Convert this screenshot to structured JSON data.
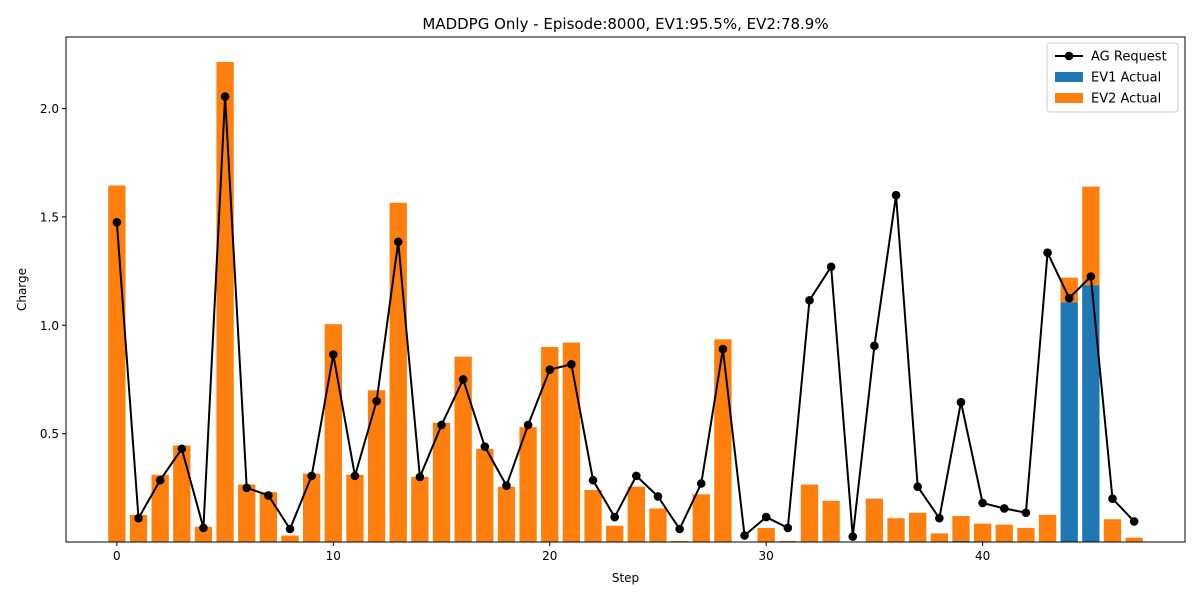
{
  "chart_data": {
    "type": "bar",
    "title": "MADDPG Only - Episode:8000, EV1:95.5%, EV2:78.9%",
    "xlabel": "Step",
    "ylabel": "Charge",
    "xlim": [
      -2.35,
      49.35
    ],
    "ylim": [
      0,
      2.33
    ],
    "x_ticks": [
      0,
      10,
      20,
      30,
      40
    ],
    "y_ticks": [
      0.5,
      1.0,
      1.5,
      2.0
    ],
    "y_tick_labels": [
      "0.5",
      "1.0",
      "1.5",
      "2.0"
    ],
    "grid": false,
    "legend_position": "top-right",
    "x": [
      0,
      1,
      2,
      3,
      4,
      5,
      6,
      7,
      8,
      9,
      10,
      11,
      12,
      13,
      14,
      15,
      16,
      17,
      18,
      19,
      20,
      21,
      22,
      23,
      24,
      25,
      26,
      27,
      28,
      29,
      30,
      31,
      32,
      33,
      34,
      35,
      36,
      37,
      38,
      39,
      40,
      41,
      42,
      43,
      44,
      45,
      46,
      47
    ],
    "series": [
      {
        "name": "AG Request",
        "kind": "line",
        "color": "#000000",
        "values": [
          1.475,
          0.11,
          0.285,
          0.43,
          0.065,
          2.055,
          0.25,
          0.215,
          0.06,
          0.305,
          0.865,
          0.305,
          0.65,
          1.385,
          0.3,
          0.54,
          0.75,
          0.44,
          0.26,
          0.54,
          0.795,
          0.82,
          0.285,
          0.115,
          0.305,
          0.21,
          0.06,
          0.27,
          0.89,
          0.03,
          0.115,
          0.065,
          1.115,
          1.27,
          0.025,
          0.905,
          1.6,
          0.255,
          0.11,
          0.645,
          0.18,
          0.155,
          0.135,
          1.335,
          1.125,
          1.225,
          0.2,
          0.095
        ]
      },
      {
        "name": "EV1 Actual",
        "kind": "bar",
        "color": "#1f77b4",
        "values": [
          0,
          0,
          0,
          0,
          0,
          0,
          0,
          0,
          0,
          0,
          0,
          0,
          0,
          0,
          0,
          0,
          0,
          0,
          0,
          0,
          0,
          0,
          0,
          0,
          0,
          0,
          0,
          0,
          0,
          0,
          0,
          0,
          0,
          0,
          0,
          0,
          0,
          0,
          0,
          0.005,
          0,
          0,
          0,
          0,
          1.105,
          1.185,
          0,
          0
        ]
      },
      {
        "name": "EV2 Actual",
        "kind": "bar",
        "color": "#ff7f0e",
        "values": [
          1.645,
          0.125,
          0.31,
          0.445,
          0.07,
          2.215,
          0.265,
          0.23,
          0.03,
          0.315,
          1.005,
          0.31,
          0.7,
          1.565,
          0.3,
          0.55,
          0.855,
          0.43,
          0.255,
          0.53,
          0.9,
          0.92,
          0.24,
          0.075,
          0.255,
          0.155,
          0.005,
          0.22,
          0.935,
          0,
          0.065,
          0.005,
          0.265,
          0.19,
          0,
          0.2,
          0.11,
          0.135,
          0.04,
          0.115,
          0.085,
          0.08,
          0.065,
          0.125,
          0.115,
          0.455,
          0.105,
          0.02
        ]
      }
    ]
  }
}
